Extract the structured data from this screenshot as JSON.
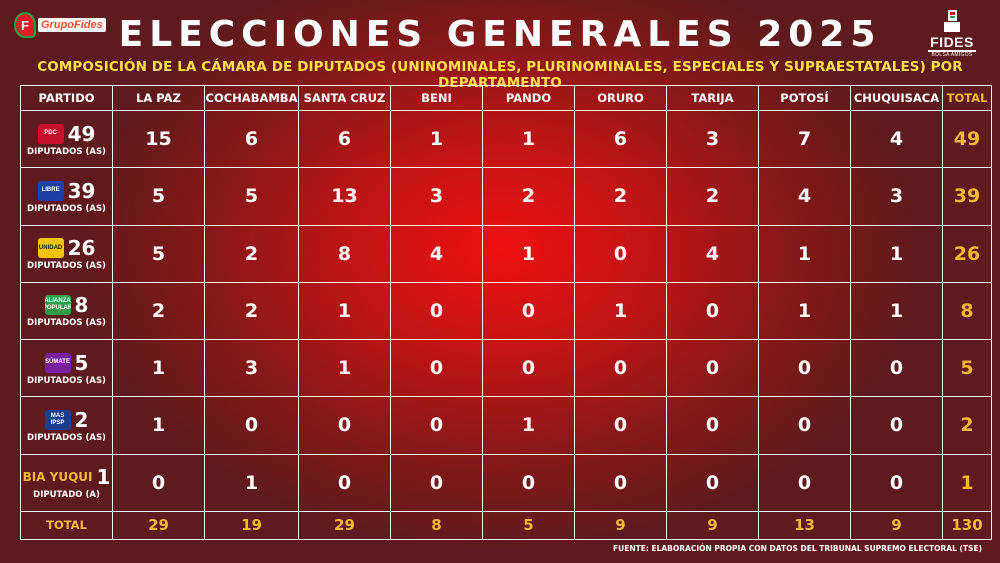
{
  "brand": {
    "left_logo": "GrupoFides",
    "right_logo": "FIDES",
    "right_logo_sub": "BOLSA AMIGOS"
  },
  "title": "ELECCIONES GENERALES 2025",
  "subtitle": "COMPOSICIÓN DE LA CÁMARA DE DIPUTADOS (UNINOMINALES, PLURINOMINALES, ESPECIALES Y SUPRAESTATALES) POR DEPARTAMENTO",
  "headers": [
    "PARTIDO",
    "LA PAZ",
    "COCHABAMBA",
    "SANTA CRUZ",
    "BENI",
    "PANDO",
    "ORURO",
    "TARIJA",
    "POTOSÍ",
    "CHUQUISACA",
    "TOTAL"
  ],
  "parties": [
    {
      "logo_text": "PDC",
      "logo_color": "#c8102e",
      "count": "49",
      "label": "DIPUTADOS (AS)",
      "values": [
        "15",
        "6",
        "6",
        "1",
        "1",
        "6",
        "3",
        "7",
        "4"
      ],
      "total": "49"
    },
    {
      "logo_text": "LIBRE",
      "logo_color": "#1d3fa8",
      "count": "39",
      "label": "DIPUTADOS (AS)",
      "values": [
        "5",
        "5",
        "13",
        "3",
        "2",
        "2",
        "2",
        "4",
        "3"
      ],
      "total": "39"
    },
    {
      "logo_text": "UNIDAD",
      "logo_color": "#f5c400",
      "count": "26",
      "label": "DIPUTADOS (AS)",
      "values": [
        "5",
        "2",
        "8",
        "4",
        "1",
        "0",
        "4",
        "1",
        "1"
      ],
      "total": "26"
    },
    {
      "logo_text": "ALIANZA POPULAR",
      "logo_color": "#2e9e4a",
      "count": "8",
      "label": "DIPUTADOS (AS)",
      "values": [
        "2",
        "2",
        "1",
        "0",
        "0",
        "1",
        "0",
        "1",
        "1"
      ],
      "total": "8"
    },
    {
      "logo_text": "SÚMATE",
      "logo_color": "#7a1fa2",
      "count": "5",
      "label": "DIPUTADOS (AS)",
      "values": [
        "1",
        "3",
        "1",
        "0",
        "0",
        "0",
        "0",
        "0",
        "0"
      ],
      "total": "5"
    },
    {
      "logo_text": "MAS IPSP",
      "logo_color": "#1a3d8f",
      "count": "2",
      "label": "DIPUTADOS (AS)",
      "values": [
        "1",
        "0",
        "0",
        "0",
        "1",
        "0",
        "0",
        "0",
        "0"
      ],
      "total": "2"
    },
    {
      "logo_text": "BIA YUQUI",
      "logo_color": "#f7b733",
      "count": "1",
      "label": "DIPUTADO (A)",
      "values": [
        "0",
        "1",
        "0",
        "0",
        "0",
        "0",
        "0",
        "0",
        "0"
      ],
      "total": "1"
    }
  ],
  "totals": {
    "label": "TOTAL",
    "values": [
      "29",
      "19",
      "29",
      "8",
      "5",
      "9",
      "9",
      "13",
      "9"
    ],
    "total": "130"
  },
  "source": "FUENTE: ELABORACIÓN PROPIA CON DATOS DEL TRIBUNAL SUPREMO ELECTORAL (TSE)"
}
